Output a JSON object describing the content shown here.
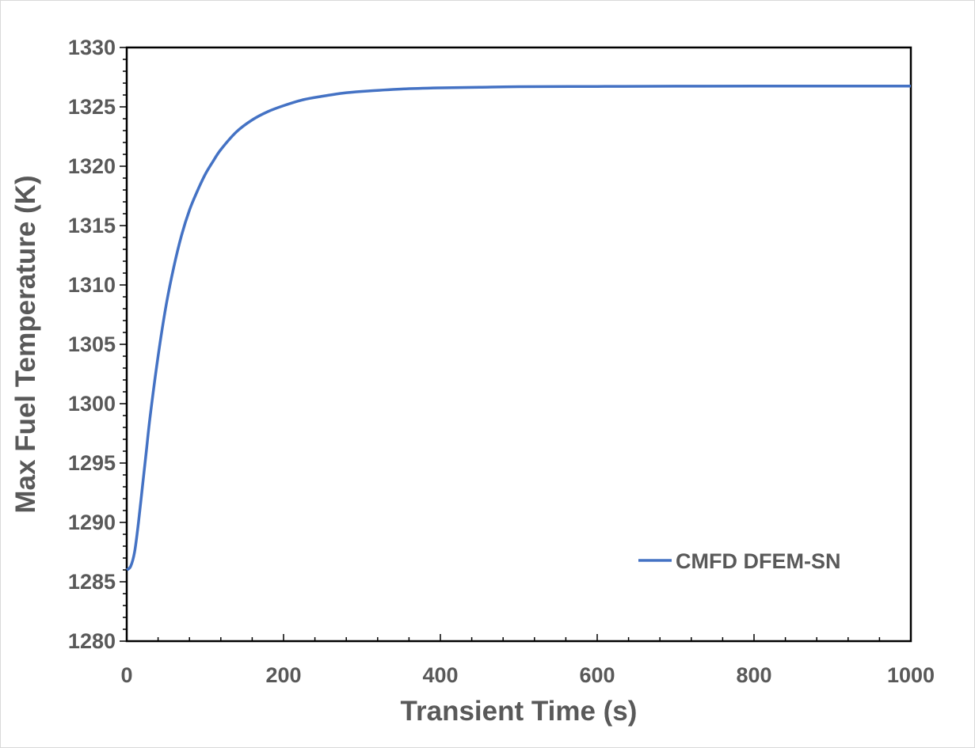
{
  "chart_data": {
    "type": "line",
    "title": "",
    "xlabel": "Transient Time (s)",
    "ylabel": "Max Fuel Temperature (K)",
    "xlim": [
      0,
      1000
    ],
    "ylim": [
      1280,
      1330
    ],
    "xticks": [
      0,
      200,
      400,
      600,
      800,
      1000
    ],
    "yticks": [
      1280,
      1285,
      1290,
      1295,
      1300,
      1305,
      1310,
      1315,
      1320,
      1325,
      1330
    ],
    "grid": false,
    "legend_position": "bottom-right",
    "series": [
      {
        "name": "CMFD DFEM-SN",
        "color": "#4472c4",
        "x": [
          0,
          5,
          10,
          15,
          20,
          25,
          30,
          40,
          50,
          60,
          70,
          80,
          90,
          100,
          110,
          120,
          140,
          160,
          180,
          200,
          225,
          250,
          275,
          300,
          350,
          400,
          450,
          500,
          600,
          700,
          800,
          900,
          1000
        ],
        "y": [
          1286.0,
          1286.3,
          1287.5,
          1290.0,
          1293.0,
          1296.0,
          1299.0,
          1304.0,
          1308.2,
          1311.5,
          1314.2,
          1316.3,
          1317.9,
          1319.3,
          1320.4,
          1321.4,
          1322.9,
          1323.9,
          1324.6,
          1325.1,
          1325.6,
          1325.9,
          1326.15,
          1326.3,
          1326.5,
          1326.6,
          1326.65,
          1326.7,
          1326.72,
          1326.74,
          1326.75,
          1326.75,
          1326.75
        ]
      }
    ]
  }
}
